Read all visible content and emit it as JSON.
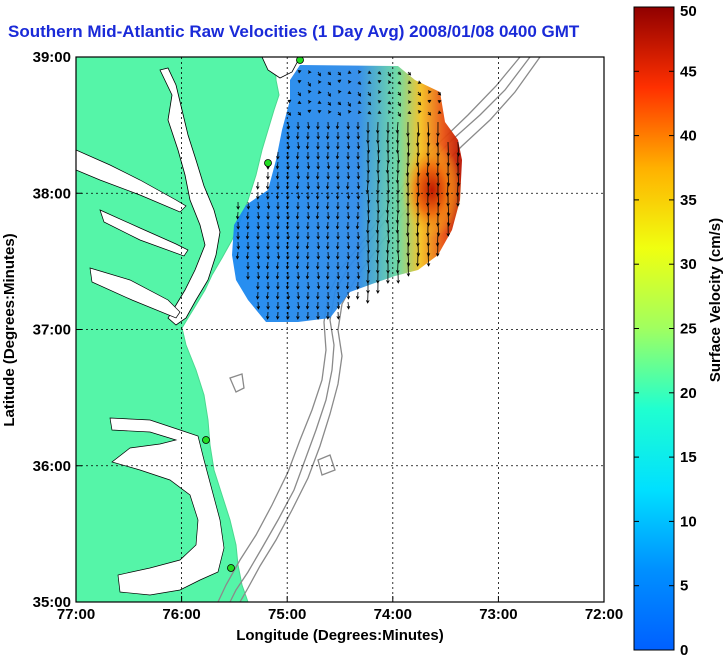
{
  "title": "Southern Mid-Atlantic Raw Velocities (1 Day Avg) 2008/01/08 0400 GMT",
  "map": {
    "xlabel": "Longitude (Degrees:Minutes)",
    "ylabel": "Latitude (Degrees:Minutes)",
    "x_ticks": [
      "77:00",
      "76:00",
      "75:00",
      "74:00",
      "73:00",
      "72:00"
    ],
    "y_ticks": [
      "39:00",
      "38:00",
      "37:00",
      "36:00",
      "35:00"
    ],
    "x_range_deg_west": [
      77,
      72
    ],
    "y_range_deg_north": [
      35,
      39
    ],
    "grid": "dotted",
    "colors": {
      "land": "#55f5a8",
      "ocean": "#ffffff",
      "bathymetry": "#8a8a8a",
      "vectors": "#000000",
      "stations": "#22dd22"
    }
  },
  "colorbar": {
    "label": "Surface Velocity (cm/s)",
    "ticks": [
      "0",
      "5",
      "10",
      "15",
      "20",
      "25",
      "30",
      "35",
      "40",
      "45",
      "50"
    ],
    "min": 0,
    "max": 50,
    "colormap": "jet",
    "placement": "right"
  }
}
